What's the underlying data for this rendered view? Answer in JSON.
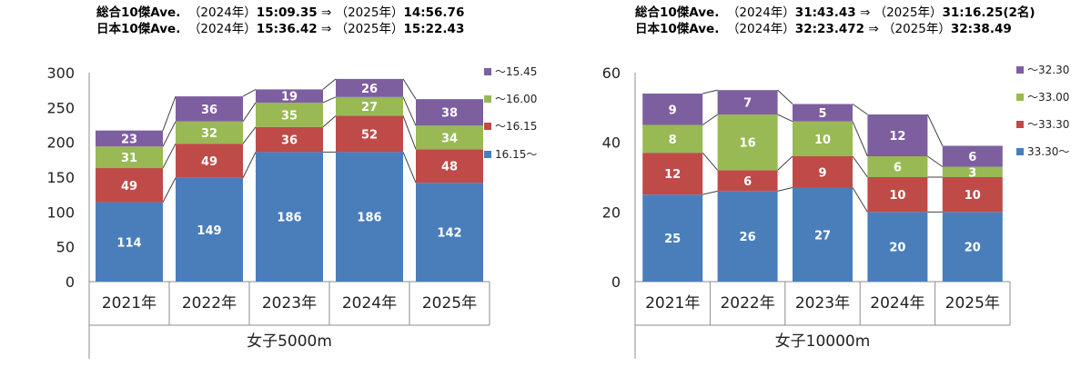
{
  "chart_data": [
    {
      "type": "bar",
      "stacked": true,
      "header": [
        {
          "label": "総合10傑Ave.",
          "y1_label": "（2024年）",
          "y1_value": "15:09.35",
          "arrow": "⇒",
          "y2_label": "（2025年）",
          "y2_value": "14:56.76"
        },
        {
          "label": "日本10傑Ave.",
          "y1_label": "（2024年）",
          "y1_value": "15:36.42",
          "arrow": "⇒",
          "y2_label": "（2025年）",
          "y2_value": "15:22.43"
        }
      ],
      "categories": [
        "2021年",
        "2022年",
        "2023年",
        "2024年",
        "2025年"
      ],
      "xlabel": "女子5000m",
      "ylim": [
        0,
        300
      ],
      "yticks": [
        0,
        50,
        100,
        150,
        200,
        250,
        300
      ],
      "series": [
        {
          "name": "16.15〜",
          "color": "#4a7ebb",
          "values": [
            114,
            149,
            186,
            186,
            142
          ]
        },
        {
          "name": "〜16.15",
          "color": "#be4b48",
          "values": [
            49,
            49,
            36,
            52,
            48
          ]
        },
        {
          "name": "〜16.00",
          "color": "#98b954",
          "values": [
            31,
            32,
            35,
            27,
            34
          ]
        },
        {
          "name": "〜15.45",
          "color": "#7d5fa0",
          "values": [
            23,
            36,
            19,
            26,
            38
          ]
        }
      ],
      "legend_position": "right"
    },
    {
      "type": "bar",
      "stacked": true,
      "header": [
        {
          "label": "総合10傑Ave.",
          "y1_label": "（2024年）",
          "y1_value": "31:43.43",
          "arrow": "⇒",
          "y2_label": "（2025年）",
          "y2_value": "31:16.25(2名)"
        },
        {
          "label": "日本10傑Ave.",
          "y1_label": "（2024年）",
          "y1_value": "32:23.472",
          "arrow": "⇒",
          "y2_label": "（2025年）",
          "y2_value": "32:38.49"
        }
      ],
      "categories": [
        "2021年",
        "2022年",
        "2023年",
        "2024年",
        "2025年"
      ],
      "xlabel": "女子10000m",
      "ylim": [
        0,
        60
      ],
      "yticks": [
        0,
        20,
        40,
        60
      ],
      "series": [
        {
          "name": "33.30〜",
          "color": "#4a7ebb",
          "values": [
            25,
            26,
            27,
            20,
            20
          ]
        },
        {
          "name": "〜33.30",
          "color": "#be4b48",
          "values": [
            12,
            6,
            9,
            10,
            10
          ]
        },
        {
          "name": "〜33.00",
          "color": "#98b954",
          "values": [
            8,
            16,
            10,
            6,
            3
          ]
        },
        {
          "name": "〜32.30",
          "color": "#7d5fa0",
          "values": [
            9,
            7,
            5,
            12,
            6
          ]
        }
      ],
      "legend_position": "right"
    }
  ]
}
